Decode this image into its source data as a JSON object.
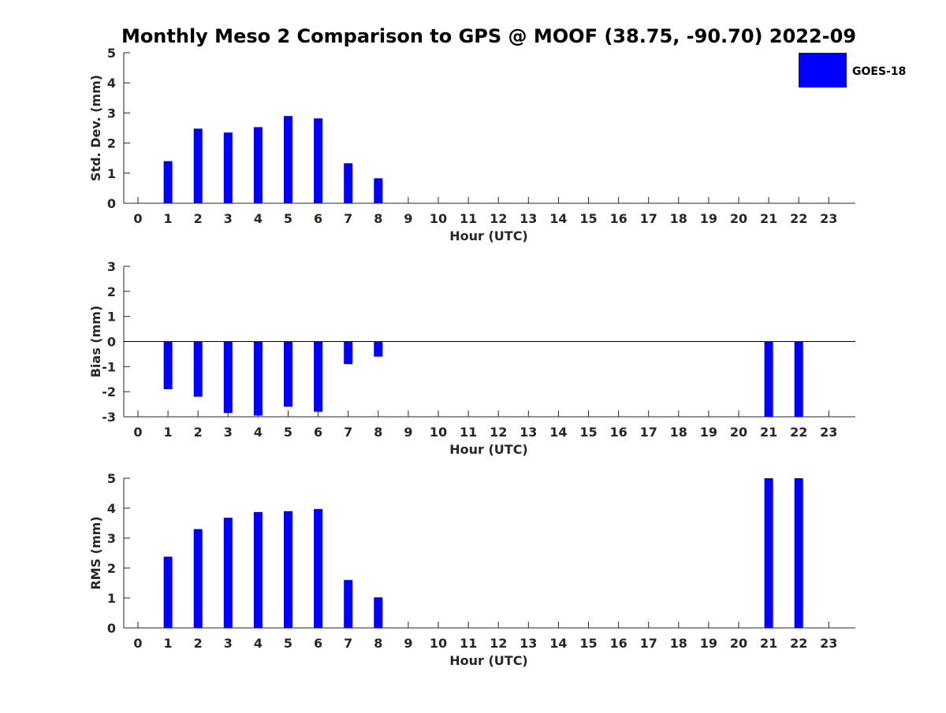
{
  "title": "Monthly Meso 2 Comparison to GPS @ MOOF (38.75, -90.70) 2022-09",
  "legend": {
    "label": "GOES-18",
    "color": "#0000ff",
    "placement": "top-right"
  },
  "chart_data": [
    {
      "type": "bar",
      "ylabel": "Std. Dev. (mm)",
      "xlabel": "Hour (UTC)",
      "ylim": [
        0,
        5
      ],
      "yticks": [
        0,
        1,
        2,
        3,
        4,
        5
      ],
      "categories": [
        "0",
        "1",
        "2",
        "3",
        "4",
        "5",
        "6",
        "7",
        "8",
        "9",
        "10",
        "11",
        "12",
        "13",
        "14",
        "15",
        "16",
        "17",
        "18",
        "19",
        "20",
        "21",
        "22",
        "23"
      ],
      "series": [
        {
          "name": "GOES-18",
          "color": "#0000ff",
          "values": [
            null,
            1.4,
            2.48,
            2.35,
            2.53,
            2.9,
            2.82,
            1.33,
            0.83,
            null,
            null,
            null,
            null,
            null,
            null,
            null,
            null,
            null,
            null,
            null,
            null,
            null,
            null,
            null
          ]
        }
      ]
    },
    {
      "type": "bar",
      "ylabel": "Bias (mm)",
      "xlabel": "Hour (UTC)",
      "ylim": [
        -3,
        3
      ],
      "yticks": [
        -3,
        -2,
        -1,
        0,
        1,
        2,
        3
      ],
      "zero_line": true,
      "categories": [
        "0",
        "1",
        "2",
        "3",
        "4",
        "5",
        "6",
        "7",
        "8",
        "9",
        "10",
        "11",
        "12",
        "13",
        "14",
        "15",
        "16",
        "17",
        "18",
        "19",
        "20",
        "21",
        "22",
        "23"
      ],
      "series": [
        {
          "name": "GOES-18",
          "color": "#0000ff",
          "values": [
            null,
            -1.9,
            -2.2,
            -2.85,
            -2.95,
            -2.6,
            -2.8,
            -0.9,
            -0.6,
            null,
            null,
            null,
            null,
            null,
            null,
            null,
            null,
            null,
            null,
            null,
            null,
            -3.0,
            -3.0,
            null
          ]
        }
      ]
    },
    {
      "type": "bar",
      "ylabel": "RMS (mm)",
      "xlabel": "Hour (UTC)",
      "ylim": [
        0,
        5
      ],
      "yticks": [
        0,
        1,
        2,
        3,
        4,
        5
      ],
      "categories": [
        "0",
        "1",
        "2",
        "3",
        "4",
        "5",
        "6",
        "7",
        "8",
        "9",
        "10",
        "11",
        "12",
        "13",
        "14",
        "15",
        "16",
        "17",
        "18",
        "19",
        "20",
        "21",
        "22",
        "23"
      ],
      "series": [
        {
          "name": "GOES-18",
          "color": "#0000ff",
          "values": [
            null,
            2.38,
            3.3,
            3.68,
            3.87,
            3.9,
            3.97,
            1.6,
            1.02,
            null,
            null,
            null,
            null,
            null,
            null,
            null,
            null,
            null,
            null,
            null,
            null,
            5.0,
            5.0,
            null
          ]
        }
      ]
    }
  ]
}
